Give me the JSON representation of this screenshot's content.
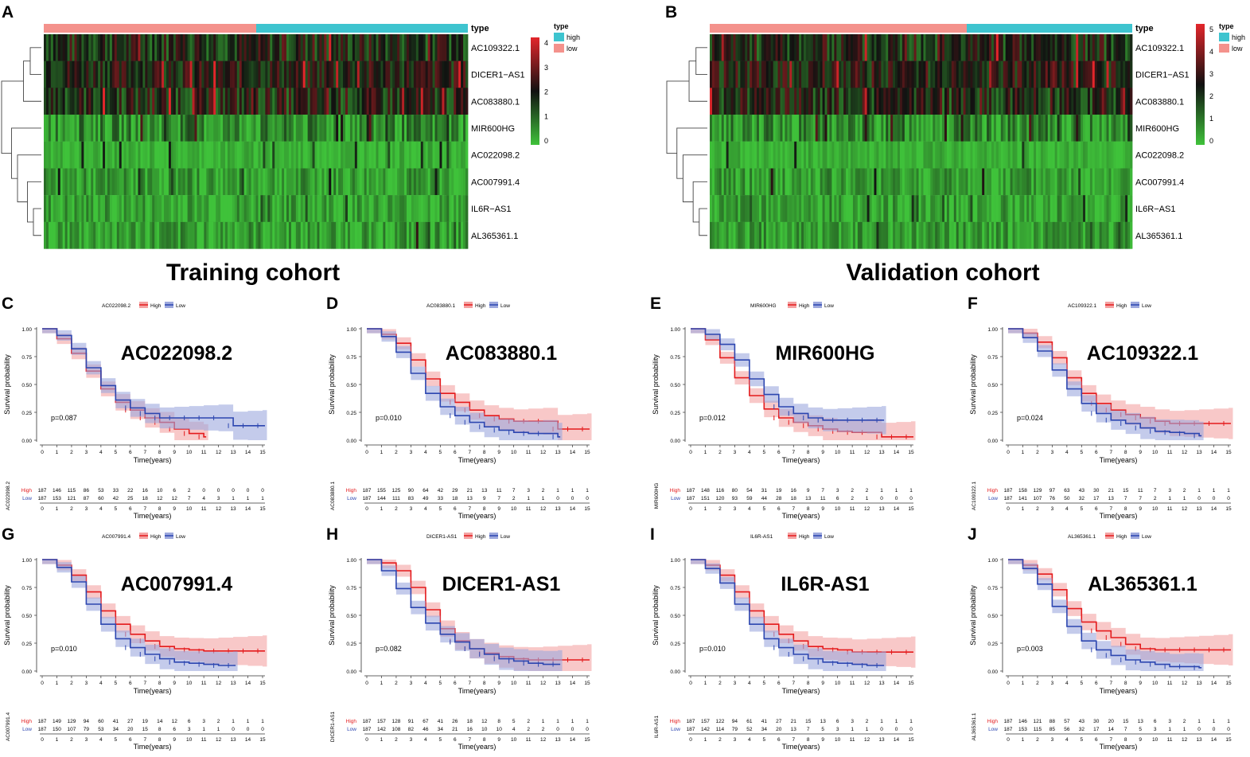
{
  "panel_labels": [
    "A",
    "B",
    "C",
    "D",
    "E",
    "F",
    "G",
    "H",
    "I",
    "J"
  ],
  "cohorts": {
    "training": "Training cohort",
    "validation": "Validation cohort"
  },
  "heatmaps": [
    {
      "panel": "A",
      "type_label": "type",
      "genes": [
        "AC109322.1",
        "DICER1−AS1",
        "AC083880.1",
        "MIR600HG",
        "AC022098.2",
        "AC007991.4",
        "IL6R−AS1",
        "AL365361.1"
      ],
      "legend": {
        "title": "type",
        "high": "high",
        "low": "low"
      },
      "colorbar_ticks": [
        "4",
        "3",
        "2",
        "1",
        "0"
      ],
      "colors": {
        "high_type": "#3ec4cf",
        "low_type": "#f4928c",
        "max": "#e3262b",
        "mid": "#111111",
        "min": "#3fc23a"
      }
    },
    {
      "panel": "B",
      "type_label": "type",
      "genes": [
        "AC109322.1",
        "DICER1−AS1",
        "AC083880.1",
        "MIR600HG",
        "AC022098.2",
        "AC007991.4",
        "IL6R−AS1",
        "AL365361.1"
      ],
      "legend": {
        "title": "type",
        "high": "high",
        "low": "low"
      },
      "colorbar_ticks": [
        "5",
        "4",
        "3",
        "2",
        "1",
        "0"
      ],
      "colors": {
        "high_type": "#3ec4cf",
        "low_type": "#f4928c",
        "max": "#e3262b",
        "mid": "#111111",
        "min": "#3fc23a"
      }
    }
  ],
  "km_common": {
    "xlabel": "Time(years)",
    "ylabel": "Survival probability",
    "xticks": [
      "0",
      "1",
      "2",
      "3",
      "4",
      "5",
      "6",
      "7",
      "8",
      "9",
      "10",
      "11",
      "12",
      "13",
      "14",
      "15"
    ],
    "yticks": [
      "1.00",
      "0.75",
      "0.50",
      "0.25",
      "0.00"
    ],
    "group_high": "High",
    "group_low": "Low",
    "colors": {
      "high": "#e41a1c",
      "low": "#2c46b0",
      "high_band": "#f4a3a3",
      "low_band": "#9da8dd"
    }
  },
  "chart_data": [
    {
      "panel": "C",
      "type": "line",
      "gene": "AC022098.2",
      "pvalue": "p=0.087",
      "xlim": [
        0,
        15
      ],
      "ylim": [
        0,
        1
      ],
      "series": [
        {
          "name": "High",
          "x": [
            0,
            1,
            2,
            3,
            4,
            5,
            6,
            7,
            8,
            9,
            10,
            11
          ],
          "values": [
            1,
            0.91,
            0.78,
            0.62,
            0.46,
            0.34,
            0.27,
            0.2,
            0.16,
            0.1,
            0.06,
            0.03
          ]
        },
        {
          "name": "Low",
          "x": [
            0,
            1,
            2,
            3,
            4,
            5,
            6,
            7,
            8,
            9,
            10,
            11,
            12,
            13,
            14,
            15
          ],
          "values": [
            1,
            0.94,
            0.82,
            0.65,
            0.49,
            0.36,
            0.29,
            0.24,
            0.2,
            0.2,
            0.2,
            0.2,
            0.2,
            0.13,
            0.13,
            0.13
          ]
        }
      ],
      "risk_table": {
        "High": [
          "187",
          "146",
          "115",
          "86",
          "53",
          "33",
          "22",
          "16",
          "10",
          "6",
          "2",
          "0",
          "0",
          "0",
          "0",
          "0"
        ],
        "Low": [
          "187",
          "153",
          "121",
          "87",
          "60",
          "42",
          "25",
          "18",
          "12",
          "12",
          "7",
          "4",
          "3",
          "1",
          "1",
          "1"
        ]
      }
    },
    {
      "panel": "D",
      "type": "line",
      "gene": "AC083880.1",
      "pvalue": "p=0.010",
      "xlim": [
        0,
        15
      ],
      "ylim": [
        0,
        1
      ],
      "series": [
        {
          "name": "High",
          "x": [
            0,
            1,
            2,
            3,
            4,
            5,
            6,
            7,
            8,
            9,
            10,
            11,
            12,
            13,
            14,
            15
          ],
          "values": [
            1,
            0.95,
            0.87,
            0.72,
            0.55,
            0.42,
            0.34,
            0.27,
            0.22,
            0.19,
            0.17,
            0.17,
            0.17,
            0.1,
            0.1,
            0.1
          ]
        },
        {
          "name": "Low",
          "x": [
            0,
            1,
            2,
            3,
            4,
            5,
            6,
            7,
            8,
            9,
            10,
            11,
            12,
            13
          ],
          "values": [
            1,
            0.93,
            0.79,
            0.6,
            0.42,
            0.3,
            0.22,
            0.16,
            0.12,
            0.09,
            0.07,
            0.06,
            0.06,
            0.03
          ]
        }
      ],
      "risk_table": {
        "High": [
          "187",
          "155",
          "125",
          "90",
          "64",
          "42",
          "29",
          "21",
          "13",
          "11",
          "7",
          "3",
          "2",
          "1",
          "1",
          "1"
        ],
        "Low": [
          "187",
          "144",
          "111",
          "83",
          "49",
          "33",
          "18",
          "13",
          "9",
          "7",
          "2",
          "1",
          "1",
          "0",
          "0",
          "0"
        ]
      }
    },
    {
      "panel": "E",
      "type": "line",
      "gene": "MIR600HG",
      "pvalue": "p=0.012",
      "xlim": [
        0,
        15
      ],
      "ylim": [
        0,
        1
      ],
      "series": [
        {
          "name": "High",
          "x": [
            0,
            1,
            2,
            3,
            4,
            5,
            6,
            7,
            8,
            9,
            10,
            11,
            12,
            13,
            14,
            15
          ],
          "values": [
            1,
            0.9,
            0.74,
            0.56,
            0.4,
            0.28,
            0.2,
            0.16,
            0.13,
            0.1,
            0.08,
            0.07,
            0.07,
            0.03,
            0.03,
            0.03
          ]
        },
        {
          "name": "Low",
          "x": [
            0,
            1,
            2,
            3,
            4,
            5,
            6,
            7,
            8,
            9,
            10,
            11,
            12,
            13
          ],
          "values": [
            1,
            0.95,
            0.86,
            0.72,
            0.55,
            0.41,
            0.3,
            0.24,
            0.2,
            0.18,
            0.18,
            0.18,
            0.18,
            0.18
          ]
        }
      ],
      "risk_table": {
        "High": [
          "187",
          "148",
          "116",
          "80",
          "54",
          "31",
          "19",
          "16",
          "9",
          "7",
          "3",
          "2",
          "2",
          "1",
          "1",
          "1"
        ],
        "Low": [
          "187",
          "151",
          "120",
          "93",
          "59",
          "44",
          "28",
          "18",
          "13",
          "11",
          "6",
          "2",
          "1",
          "0",
          "0",
          "0"
        ]
      }
    },
    {
      "panel": "F",
      "type": "line",
      "gene": "AC109322.1",
      "pvalue": "p=0.024",
      "xlim": [
        0,
        15
      ],
      "ylim": [
        0,
        1
      ],
      "series": [
        {
          "name": "High",
          "x": [
            0,
            1,
            2,
            3,
            4,
            5,
            6,
            7,
            8,
            9,
            10,
            11,
            12,
            13,
            14,
            15
          ],
          "values": [
            1,
            0.96,
            0.88,
            0.74,
            0.56,
            0.42,
            0.33,
            0.27,
            0.23,
            0.2,
            0.17,
            0.15,
            0.15,
            0.15,
            0.15,
            0.15
          ]
        },
        {
          "name": "Low",
          "x": [
            0,
            1,
            2,
            3,
            4,
            5,
            6,
            7,
            8,
            9,
            10,
            11,
            12,
            13
          ],
          "values": [
            1,
            0.92,
            0.8,
            0.63,
            0.46,
            0.33,
            0.24,
            0.18,
            0.15,
            0.11,
            0.08,
            0.07,
            0.06,
            0.04
          ]
        }
      ],
      "risk_table": {
        "High": [
          "187",
          "158",
          "129",
          "97",
          "63",
          "43",
          "30",
          "21",
          "15",
          "11",
          "7",
          "3",
          "2",
          "1",
          "1",
          "1"
        ],
        "Low": [
          "187",
          "141",
          "107",
          "76",
          "50",
          "32",
          "17",
          "13",
          "7",
          "7",
          "2",
          "1",
          "1",
          "0",
          "0",
          "0"
        ]
      }
    },
    {
      "panel": "G",
      "type": "line",
      "gene": "AC007991.4",
      "pvalue": "p=0.010",
      "xlim": [
        0,
        15
      ],
      "ylim": [
        0,
        1
      ],
      "series": [
        {
          "name": "High",
          "x": [
            0,
            1,
            2,
            3,
            4,
            5,
            6,
            7,
            8,
            9,
            10,
            11,
            12,
            13,
            14,
            15
          ],
          "values": [
            1,
            0.95,
            0.86,
            0.71,
            0.54,
            0.42,
            0.33,
            0.27,
            0.22,
            0.2,
            0.19,
            0.18,
            0.18,
            0.18,
            0.18,
            0.18
          ]
        },
        {
          "name": "Low",
          "x": [
            0,
            1,
            2,
            3,
            4,
            5,
            6,
            7,
            8,
            9,
            10,
            11,
            12,
            13
          ],
          "values": [
            1,
            0.93,
            0.8,
            0.6,
            0.42,
            0.29,
            0.21,
            0.15,
            0.11,
            0.08,
            0.07,
            0.06,
            0.05,
            0.05
          ]
        }
      ],
      "risk_table": {
        "High": [
          "187",
          "149",
          "129",
          "94",
          "60",
          "41",
          "27",
          "19",
          "14",
          "12",
          "6",
          "3",
          "2",
          "1",
          "1",
          "1"
        ],
        "Low": [
          "187",
          "150",
          "107",
          "79",
          "53",
          "34",
          "20",
          "15",
          "8",
          "6",
          "3",
          "1",
          "1",
          "0",
          "0",
          "0"
        ]
      }
    },
    {
      "panel": "H",
      "type": "line",
      "gene": "DICER1-AS1",
      "pvalue": "p=0.082",
      "xlim": [
        0,
        15
      ],
      "ylim": [
        0,
        1
      ],
      "series": [
        {
          "name": "High",
          "x": [
            0,
            1,
            2,
            3,
            4,
            5,
            6,
            7,
            8,
            9,
            10,
            11,
            12,
            13,
            14,
            15
          ],
          "values": [
            1,
            0.97,
            0.9,
            0.75,
            0.55,
            0.38,
            0.27,
            0.2,
            0.16,
            0.13,
            0.11,
            0.1,
            0.1,
            0.1,
            0.1,
            0.1
          ]
        },
        {
          "name": "Low",
          "x": [
            0,
            1,
            2,
            3,
            4,
            5,
            6,
            7,
            8,
            9,
            10,
            11,
            12,
            13
          ],
          "values": [
            1,
            0.9,
            0.74,
            0.57,
            0.43,
            0.33,
            0.26,
            0.2,
            0.15,
            0.11,
            0.09,
            0.07,
            0.06,
            0.06
          ]
        }
      ],
      "risk_table": {
        "High": [
          "187",
          "157",
          "128",
          "91",
          "67",
          "41",
          "26",
          "18",
          "12",
          "8",
          "5",
          "2",
          "1",
          "1",
          "1",
          "1"
        ],
        "Low": [
          "187",
          "142",
          "108",
          "82",
          "46",
          "34",
          "21",
          "16",
          "10",
          "10",
          "4",
          "2",
          "2",
          "0",
          "0",
          "0"
        ]
      }
    },
    {
      "panel": "I",
      "type": "line",
      "gene": "IL6R-AS1",
      "pvalue": "p=0.010",
      "xlim": [
        0,
        15
      ],
      "ylim": [
        0,
        1
      ],
      "series": [
        {
          "name": "High",
          "x": [
            0,
            1,
            2,
            3,
            4,
            5,
            6,
            7,
            8,
            9,
            10,
            11,
            12,
            13,
            14,
            15
          ],
          "values": [
            1,
            0.95,
            0.86,
            0.71,
            0.54,
            0.42,
            0.33,
            0.27,
            0.22,
            0.2,
            0.19,
            0.17,
            0.17,
            0.17,
            0.17,
            0.17
          ]
        },
        {
          "name": "Low",
          "x": [
            0,
            1,
            2,
            3,
            4,
            5,
            6,
            7,
            8,
            9,
            10,
            11,
            12,
            13
          ],
          "values": [
            1,
            0.92,
            0.79,
            0.6,
            0.42,
            0.29,
            0.21,
            0.15,
            0.11,
            0.08,
            0.07,
            0.06,
            0.05,
            0.05
          ]
        }
      ],
      "risk_table": {
        "High": [
          "187",
          "157",
          "122",
          "94",
          "61",
          "41",
          "27",
          "21",
          "15",
          "13",
          "6",
          "3",
          "2",
          "1",
          "1",
          "1"
        ],
        "Low": [
          "187",
          "142",
          "114",
          "79",
          "52",
          "34",
          "20",
          "13",
          "7",
          "5",
          "3",
          "1",
          "1",
          "0",
          "0",
          "0"
        ]
      }
    },
    {
      "panel": "J",
      "type": "line",
      "gene": "AL365361.1",
      "pvalue": "p=0.003",
      "xlim": [
        0,
        15
      ],
      "ylim": [
        0,
        1
      ],
      "series": [
        {
          "name": "High",
          "x": [
            0,
            1,
            2,
            3,
            4,
            5,
            6,
            7,
            8,
            9,
            10,
            11,
            12,
            13,
            14,
            15
          ],
          "values": [
            1,
            0.95,
            0.87,
            0.73,
            0.56,
            0.44,
            0.36,
            0.3,
            0.24,
            0.2,
            0.19,
            0.19,
            0.19,
            0.19,
            0.19,
            0.19
          ]
        },
        {
          "name": "Low",
          "x": [
            0,
            1,
            2,
            3,
            4,
            5,
            6,
            7,
            8,
            9,
            10,
            11,
            12,
            13
          ],
          "values": [
            1,
            0.92,
            0.78,
            0.58,
            0.4,
            0.27,
            0.19,
            0.14,
            0.1,
            0.08,
            0.06,
            0.04,
            0.04,
            0.03
          ]
        }
      ],
      "risk_table": {
        "High": [
          "187",
          "146",
          "121",
          "88",
          "57",
          "43",
          "30",
          "20",
          "15",
          "13",
          "6",
          "3",
          "2",
          "1",
          "1",
          "1"
        ],
        "Low": [
          "187",
          "153",
          "115",
          "85",
          "56",
          "32",
          "17",
          "14",
          "7",
          "5",
          "3",
          "1",
          "1",
          "0",
          "0",
          "0"
        ]
      }
    }
  ]
}
